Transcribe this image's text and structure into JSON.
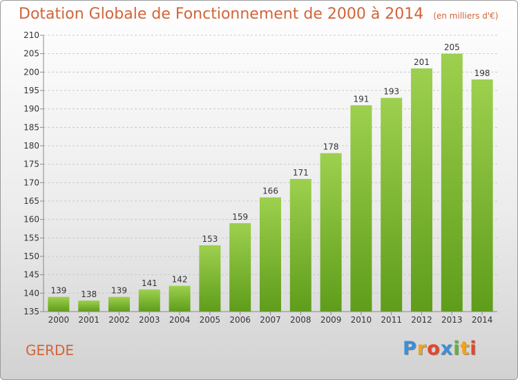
{
  "chart_data": {
    "type": "bar",
    "title": "Dotation Globale de Fonctionnement de 2000 à 2014",
    "subtitle": "(en milliers d'€)",
    "categories": [
      "2000",
      "2001",
      "2002",
      "2003",
      "2004",
      "2005",
      "2006",
      "2007",
      "2008",
      "2009",
      "2010",
      "2011",
      "2012",
      "2013",
      "2014"
    ],
    "values": [
      139,
      138,
      139,
      141,
      142,
      153,
      159,
      166,
      171,
      178,
      191,
      193,
      201,
      205,
      198
    ],
    "data_labels": [
      "139",
      "138",
      "139",
      "141",
      "142",
      "153",
      "159",
      "166",
      "171",
      "178",
      "191",
      "193",
      "201",
      "205",
      "198"
    ],
    "yticks": [
      "135",
      "140",
      "145",
      "150",
      "155",
      "160",
      "165",
      "170",
      "175",
      "180",
      "185",
      "190",
      "195",
      "200",
      "205",
      "210"
    ],
    "ylim": [
      135,
      210
    ],
    "grid": true,
    "colors": {
      "bar_light": "#9dd04e",
      "bar_dark": "#5e9d1a",
      "title": "#d2643a"
    }
  },
  "commune": "GERDE",
  "logo": {
    "letters": [
      "P",
      "r",
      "o",
      "x",
      "i",
      "t",
      "i"
    ],
    "colors": [
      "#3d8fd6",
      "#f0a41c",
      "#e8452c",
      "#3d8fd6",
      "#5eb53a",
      "#f0a41c",
      "#e8452c"
    ]
  }
}
